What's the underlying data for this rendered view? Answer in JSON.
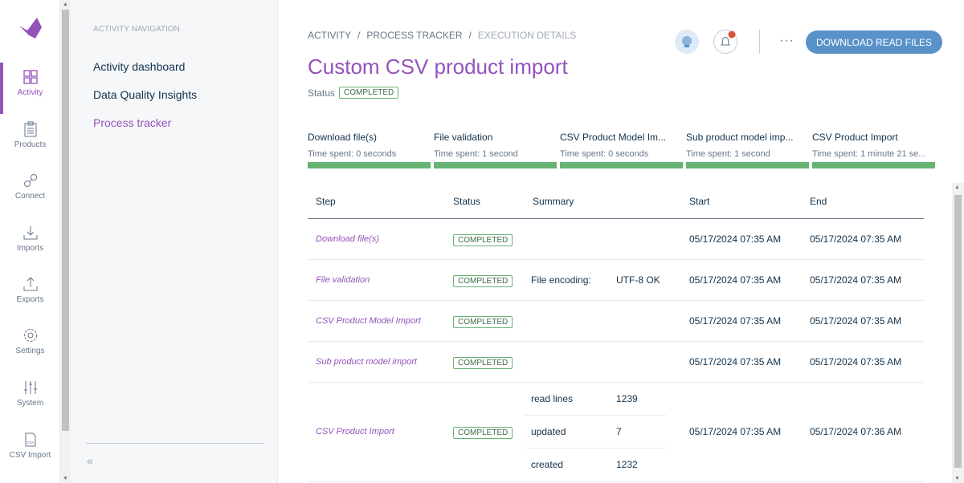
{
  "nav": {
    "items": [
      {
        "label": "Activity",
        "icon": "grid-icon"
      },
      {
        "label": "Products",
        "icon": "clipboard-icon"
      },
      {
        "label": "Connect",
        "icon": "link-icon"
      },
      {
        "label": "Imports",
        "icon": "import-icon"
      },
      {
        "label": "Exports",
        "icon": "export-icon"
      },
      {
        "label": "Settings",
        "icon": "gear-icon"
      },
      {
        "label": "System",
        "icon": "sliders-icon"
      },
      {
        "label": "CSV Import",
        "icon": "csv-file-icon"
      }
    ]
  },
  "panel": {
    "title": "Activity navigation",
    "links": [
      "Activity dashboard",
      "Data Quality Insights",
      "Process tracker"
    ]
  },
  "breadcrumb": [
    "ACTIVITY",
    "PROCESS TRACKER",
    "EXECUTION DETAILS"
  ],
  "header": {
    "title": "Custom CSV product import",
    "status_label": "Status",
    "status": "COMPLETED",
    "download_label": "DOWNLOAD READ FILES",
    "more": "···"
  },
  "colors": {
    "accent": "#9452ba",
    "button": "#5992c9",
    "success": "#67b373",
    "notification": "#d4533b"
  },
  "steps": [
    {
      "name": "Download file(s)",
      "time": "Time spent: 0 seconds",
      "progress": 100
    },
    {
      "name": "File validation",
      "time": "Time spent: 1 second",
      "progress": 100
    },
    {
      "name": "CSV Product Model Im...",
      "time": "Time spent: 0 seconds",
      "progress": 100
    },
    {
      "name": "Sub product model imp...",
      "time": "Time spent: 1 second",
      "progress": 100
    },
    {
      "name": "CSV Product Import",
      "time": "Time spent: 1 minute 21 se...",
      "progress": 100
    }
  ],
  "table": {
    "headers": [
      "Step",
      "Status",
      "Summary",
      "Start",
      "End"
    ],
    "rows": [
      {
        "step": "Download file(s)",
        "status": "COMPLETED",
        "summary": [],
        "start": "05/17/2024 07:35 AM",
        "end": "05/17/2024 07:35 AM"
      },
      {
        "step": "File validation",
        "status": "COMPLETED",
        "summary": [
          {
            "k": "File encoding:",
            "v": "UTF-8 OK"
          }
        ],
        "start": "05/17/2024 07:35 AM",
        "end": "05/17/2024 07:35 AM"
      },
      {
        "step": "CSV Product Model Import",
        "status": "COMPLETED",
        "summary": [],
        "start": "05/17/2024 07:35 AM",
        "end": "05/17/2024 07:35 AM"
      },
      {
        "step": "Sub product model import",
        "status": "COMPLETED",
        "summary": [],
        "start": "05/17/2024 07:35 AM",
        "end": "05/17/2024 07:35 AM"
      },
      {
        "step": "CSV Product Import",
        "status": "COMPLETED",
        "summary": [
          {
            "k": "read lines",
            "v": "1239"
          },
          {
            "k": "updated",
            "v": "7"
          },
          {
            "k": "created",
            "v": "1232"
          }
        ],
        "start": "05/17/2024 07:35 AM",
        "end": "05/17/2024 07:36 AM"
      }
    ]
  }
}
